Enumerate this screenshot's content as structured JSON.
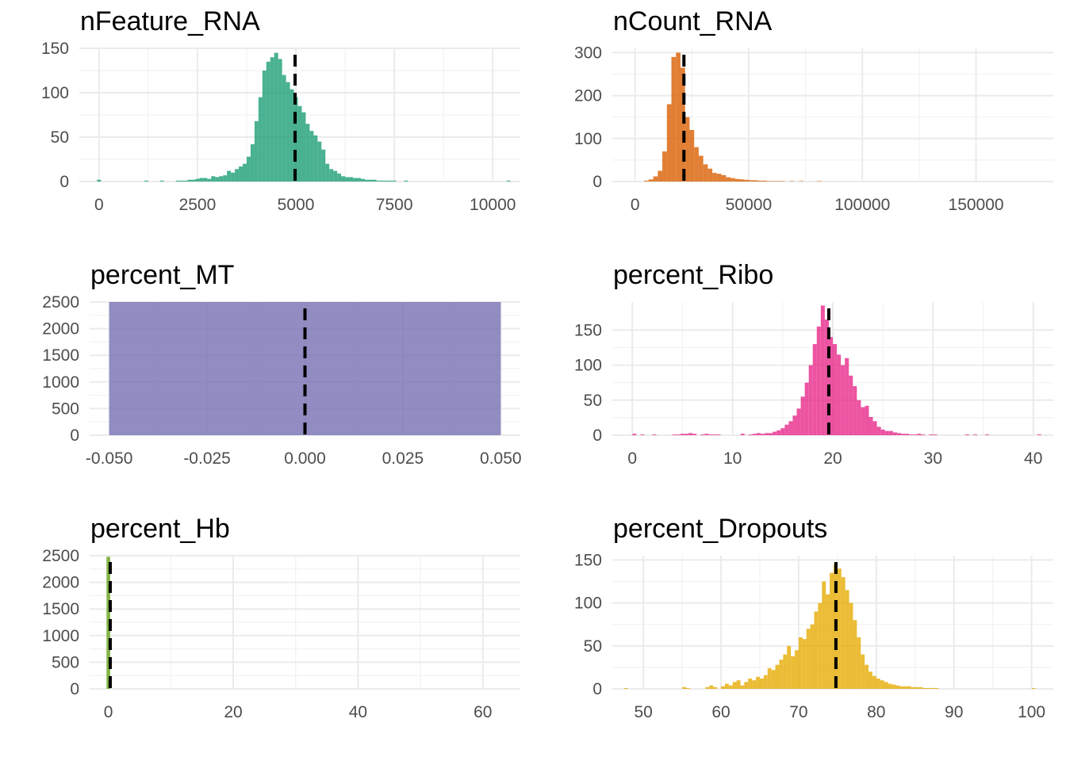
{
  "chart_data": [
    {
      "type": "bar",
      "title": "nFeature_RNA",
      "color": "#1b9e77",
      "median": 4980,
      "xlim": [
        -500,
        10700
      ],
      "ylim": [
        0,
        150
      ],
      "x_ticks": [
        0,
        2500,
        5000,
        7500,
        10000
      ],
      "x_tick_labels": [
        "0",
        "2500",
        "5000",
        "7500",
        "10000"
      ],
      "y_ticks": [
        0,
        50,
        100,
        150
      ],
      "y_tick_labels": [
        "0",
        "50",
        "100",
        "150"
      ],
      "bin_start": -50,
      "bin_width": 100,
      "values": [
        2,
        0,
        0,
        0,
        0,
        0,
        0,
        0,
        0,
        0,
        0,
        0,
        1,
        0,
        0,
        0,
        1,
        0,
        0,
        0,
        1,
        1,
        1,
        2,
        2,
        3,
        4,
        4,
        3,
        6,
        5,
        6,
        7,
        12,
        10,
        14,
        17,
        20,
        28,
        42,
        68,
        95,
        125,
        135,
        140,
        145,
        138,
        120,
        112,
        104,
        95,
        85,
        78,
        65,
        57,
        52,
        45,
        36,
        20,
        14,
        12,
        9,
        6,
        5,
        5,
        4,
        4,
        3,
        2,
        2,
        2,
        1,
        1,
        1,
        1,
        1,
        0,
        0,
        1,
        0,
        0,
        0,
        0,
        0,
        0,
        0,
        0,
        0,
        0,
        0,
        0,
        0,
        0,
        0,
        0,
        0,
        0,
        0,
        0,
        0,
        0,
        0,
        0,
        0,
        1
      ]
    },
    {
      "type": "bar",
      "title": "nCount_RNA",
      "color": "#d95f02",
      "median": 21500,
      "xlim": [
        -10000,
        184000
      ],
      "ylim": [
        0,
        310
      ],
      "x_ticks": [
        0,
        50000,
        100000,
        150000
      ],
      "x_tick_labels": [
        "0",
        "50000",
        "100000",
        "150000"
      ],
      "y_ticks": [
        0,
        100,
        200,
        300
      ],
      "y_tick_labels": [
        "0",
        "100",
        "200",
        "300"
      ],
      "bin_start": 0,
      "bin_width": 2000,
      "values": [
        0,
        0,
        2,
        5,
        12,
        25,
        70,
        180,
        290,
        300,
        265,
        150,
        120,
        80,
        60,
        40,
        30,
        20,
        18,
        15,
        10,
        8,
        6,
        5,
        4,
        3,
        3,
        2,
        2,
        1,
        1,
        1,
        1,
        0,
        1,
        0,
        1,
        0,
        0,
        0,
        1,
        0,
        0,
        0,
        0,
        0,
        0,
        0,
        0,
        0,
        0,
        0,
        0,
        0,
        0,
        0,
        0,
        0,
        0,
        0,
        0,
        0,
        0,
        0,
        0,
        0,
        0,
        0,
        0,
        0,
        0,
        0,
        0,
        0,
        0,
        0,
        0,
        0,
        0,
        0,
        0,
        0,
        0,
        0,
        0,
        0,
        0,
        0
      ]
    },
    {
      "type": "bar",
      "title": "percent_MT",
      "color": "#7570b3",
      "median": 0,
      "xlim": [
        -0.055,
        0.055
      ],
      "ylim": [
        0,
        2500
      ],
      "x_ticks": [
        -0.05,
        -0.025,
        0,
        0.025,
        0.05
      ],
      "x_tick_labels": [
        "-0.050",
        "-0.025",
        "0.000",
        "0.025",
        "0.050"
      ],
      "y_ticks": [
        0,
        500,
        1000,
        1500,
        2000,
        2500
      ],
      "y_tick_labels": [
        "0",
        "500",
        "1000",
        "1500",
        "2000",
        "2500"
      ],
      "bin_start": -0.05,
      "bin_width": 0.1,
      "values": [
        2500
      ]
    },
    {
      "type": "bar",
      "title": "percent_Ribo",
      "color": "#e7298a",
      "median": 19.6,
      "xlim": [
        -2,
        42
      ],
      "ylim": [
        0,
        190
      ],
      "x_ticks": [
        0,
        10,
        20,
        30,
        40
      ],
      "x_tick_labels": [
        "0",
        "10",
        "20",
        "30",
        "40"
      ],
      "y_ticks": [
        0,
        50,
        100,
        150
      ],
      "y_tick_labels": [
        "0",
        "50",
        "100",
        "150"
      ],
      "bin_start": 0,
      "bin_width": 0.4,
      "values": [
        2,
        0,
        1,
        0,
        0,
        1,
        0,
        0,
        0,
        0,
        1,
        1,
        2,
        2,
        3,
        2,
        0,
        1,
        2,
        1,
        1,
        1,
        0,
        0,
        0,
        0,
        0,
        2,
        0,
        1,
        2,
        3,
        2,
        3,
        3,
        5,
        7,
        10,
        15,
        20,
        28,
        38,
        55,
        75,
        100,
        130,
        155,
        185,
        165,
        140,
        130,
        115,
        100,
        110,
        85,
        70,
        50,
        40,
        42,
        26,
        20,
        12,
        8,
        6,
        6,
        4,
        3,
        2,
        2,
        1,
        1,
        2,
        1,
        0,
        1,
        1,
        0,
        0,
        0,
        0,
        0,
        0,
        0,
        1,
        0,
        1,
        0,
        0,
        1,
        0,
        0,
        0,
        0,
        0,
        0,
        0,
        0,
        0,
        0,
        0,
        0,
        1
      ]
    },
    {
      "type": "bar",
      "title": "percent_Hb",
      "color": "#66a61e",
      "median": 0.3,
      "xlim": [
        -3,
        66
      ],
      "ylim": [
        0,
        2500
      ],
      "x_ticks": [
        0,
        20,
        40,
        60
      ],
      "x_tick_labels": [
        "0",
        "20",
        "40",
        "60"
      ],
      "y_ticks": [
        0,
        500,
        1000,
        1500,
        2000,
        2500
      ],
      "y_tick_labels": [
        "0",
        "500",
        "1000",
        "1500",
        "2000",
        "2500"
      ],
      "bin_start": -0.3,
      "bin_width": 0.6,
      "values": [
        2480
      ]
    },
    {
      "type": "bar",
      "title": "percent_Dropouts",
      "color": "#e6ab02",
      "median": 74.8,
      "xlim": [
        46,
        102.8
      ],
      "ylim": [
        0,
        155
      ],
      "x_ticks": [
        50,
        60,
        70,
        80,
        90,
        100
      ],
      "x_tick_labels": [
        "50",
        "60",
        "70",
        "80",
        "90",
        "100"
      ],
      "y_ticks": [
        0,
        50,
        100,
        150
      ],
      "y_tick_labels": [
        "0",
        "50",
        "100",
        "150"
      ],
      "bin_start": 47.5,
      "bin_width": 0.5,
      "values": [
        1,
        0,
        0,
        0,
        0,
        0,
        0,
        0,
        0,
        0,
        0,
        0,
        0,
        0,
        0,
        2,
        1,
        0,
        0,
        0,
        0,
        2,
        4,
        2,
        0,
        3,
        6,
        4,
        8,
        10,
        4,
        8,
        12,
        10,
        14,
        12,
        16,
        24,
        22,
        28,
        34,
        40,
        50,
        38,
        45,
        60,
        58,
        70,
        75,
        90,
        100,
        125,
        110,
        135,
        145,
        140,
        130,
        115,
        100,
        80,
        60,
        40,
        28,
        20,
        15,
        12,
        10,
        8,
        6,
        5,
        4,
        3,
        3,
        3,
        2,
        2,
        2,
        1,
        1,
        1,
        1,
        0,
        0,
        0,
        0,
        0,
        0,
        0,
        0,
        0,
        0,
        0,
        0,
        0,
        0,
        0,
        0,
        0,
        0,
        0,
        0,
        0,
        0,
        0,
        0,
        1
      ]
    }
  ]
}
